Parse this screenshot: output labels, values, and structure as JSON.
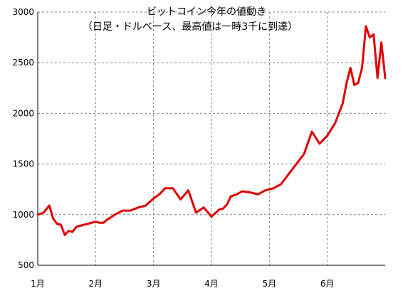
{
  "chart_data": {
    "type": "line",
    "title": "ビットコイン今年の値動き",
    "subtitle": "（日足・ドルベース、最高値は一時3千に到達）",
    "xlabel": "",
    "ylabel": "",
    "ylim": [
      500,
      3000
    ],
    "yticks": [
      500,
      1000,
      1500,
      2000,
      2500,
      3000
    ],
    "xticks": [
      "1月",
      "2月",
      "3月",
      "4月",
      "5月",
      "6月"
    ],
    "grid": true,
    "legend": "none",
    "line_color": "#e00000",
    "series": [
      {
        "x": [
          0,
          3,
          6,
          8,
          10,
          12,
          14,
          16,
          18,
          20,
          24,
          28,
          30,
          32,
          34,
          36,
          40,
          44,
          48,
          52,
          56,
          60,
          63,
          66,
          70,
          74,
          78,
          82,
          86,
          90,
          94,
          96,
          98,
          100,
          103,
          106,
          110,
          114,
          118,
          122,
          126,
          130,
          134,
          138,
          142,
          146,
          150,
          154,
          158,
          160,
          162,
          164,
          166,
          168,
          170,
          172,
          174,
          176,
          178,
          180
        ],
        "values": [
          1000,
          1020,
          1090,
          960,
          910,
          900,
          800,
          840,
          830,
          880,
          900,
          920,
          930,
          920,
          920,
          950,
          1000,
          1040,
          1040,
          1070,
          1090,
          1160,
          1200,
          1260,
          1260,
          1150,
          1240,
          1020,
          1070,
          980,
          1050,
          1060,
          1100,
          1180,
          1200,
          1230,
          1220,
          1200,
          1240,
          1260,
          1300,
          1400,
          1500,
          1600,
          1820,
          1700,
          1780,
          1900,
          2100,
          2300,
          2450,
          2280,
          2300,
          2450,
          2860,
          2750,
          2780,
          2350,
          2700,
          2350
        ]
      }
    ]
  }
}
